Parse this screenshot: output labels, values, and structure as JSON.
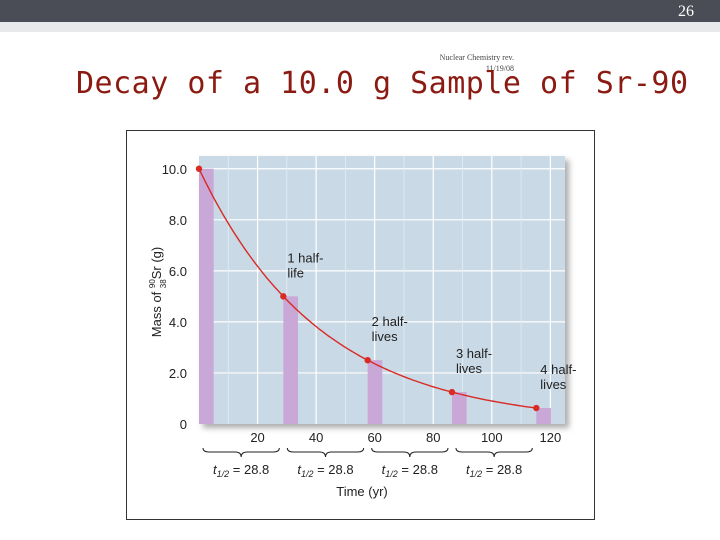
{
  "slide": {
    "number": "26",
    "footer_note": "Nuclear Chemistry rev.\n11/19/08",
    "title": "Decay of a 10.0 g Sample of Sr-90"
  },
  "colors": {
    "title": "#8b1b12",
    "plot_background": "#c9d9e6",
    "bars": "#c9a7d6",
    "curve": "#d92a24",
    "points": "#d92a24"
  },
  "chart_data": {
    "type": "bar",
    "title": "",
    "xlabel": "Time (yr)",
    "ylabel": "Mass of 90 38 Sr (g)",
    "ylabel_parts": {
      "prefix": "Mass of ",
      "mass_number": "90",
      "atomic_number": "38",
      "element": "Sr",
      "unit": " (g)"
    },
    "xlim": [
      0,
      125
    ],
    "ylim": [
      0,
      10.5
    ],
    "x_ticks": [
      "20",
      "40",
      "60",
      "80",
      "100",
      "120"
    ],
    "x_tick_values": [
      20,
      40,
      60,
      80,
      100,
      120
    ],
    "y_ticks": [
      "0",
      "2.0",
      "4.0",
      "6.0",
      "8.0",
      "10.0"
    ],
    "y_tick_values": [
      0,
      2,
      4,
      6,
      8,
      10
    ],
    "grid": true,
    "x": [
      0,
      28.8,
      57.6,
      86.4,
      115.2
    ],
    "values": [
      10.0,
      5.0,
      2.5,
      1.25,
      0.625
    ],
    "bar_width": 5,
    "curve": "exponential decay, half-life 28.8 yr",
    "annotations": [
      {
        "lines": [
          "1 half-",
          "life"
        ],
        "x": 28.8
      },
      {
        "lines": [
          "2 half-",
          "lives"
        ],
        "x": 57.6
      },
      {
        "lines": [
          "3 half-",
          "lives"
        ],
        "x": 86.4
      },
      {
        "lines": [
          "4 half-",
          "lives"
        ],
        "x": 115.2
      }
    ],
    "half_life_labels": [
      {
        "text": "t",
        "sub": "1/2",
        "value": " = 28.8",
        "from": 0,
        "to": 28.8
      },
      {
        "text": "t",
        "sub": "1/2",
        "value": " = 28.8",
        "from": 28.8,
        "to": 57.6
      },
      {
        "text": "t",
        "sub": "1/2",
        "value": " = 28.8",
        "from": 57.6,
        "to": 86.4
      },
      {
        "text": "t",
        "sub": "1/2",
        "value": " = 28.8",
        "from": 86.4,
        "to": 115.2
      }
    ]
  }
}
